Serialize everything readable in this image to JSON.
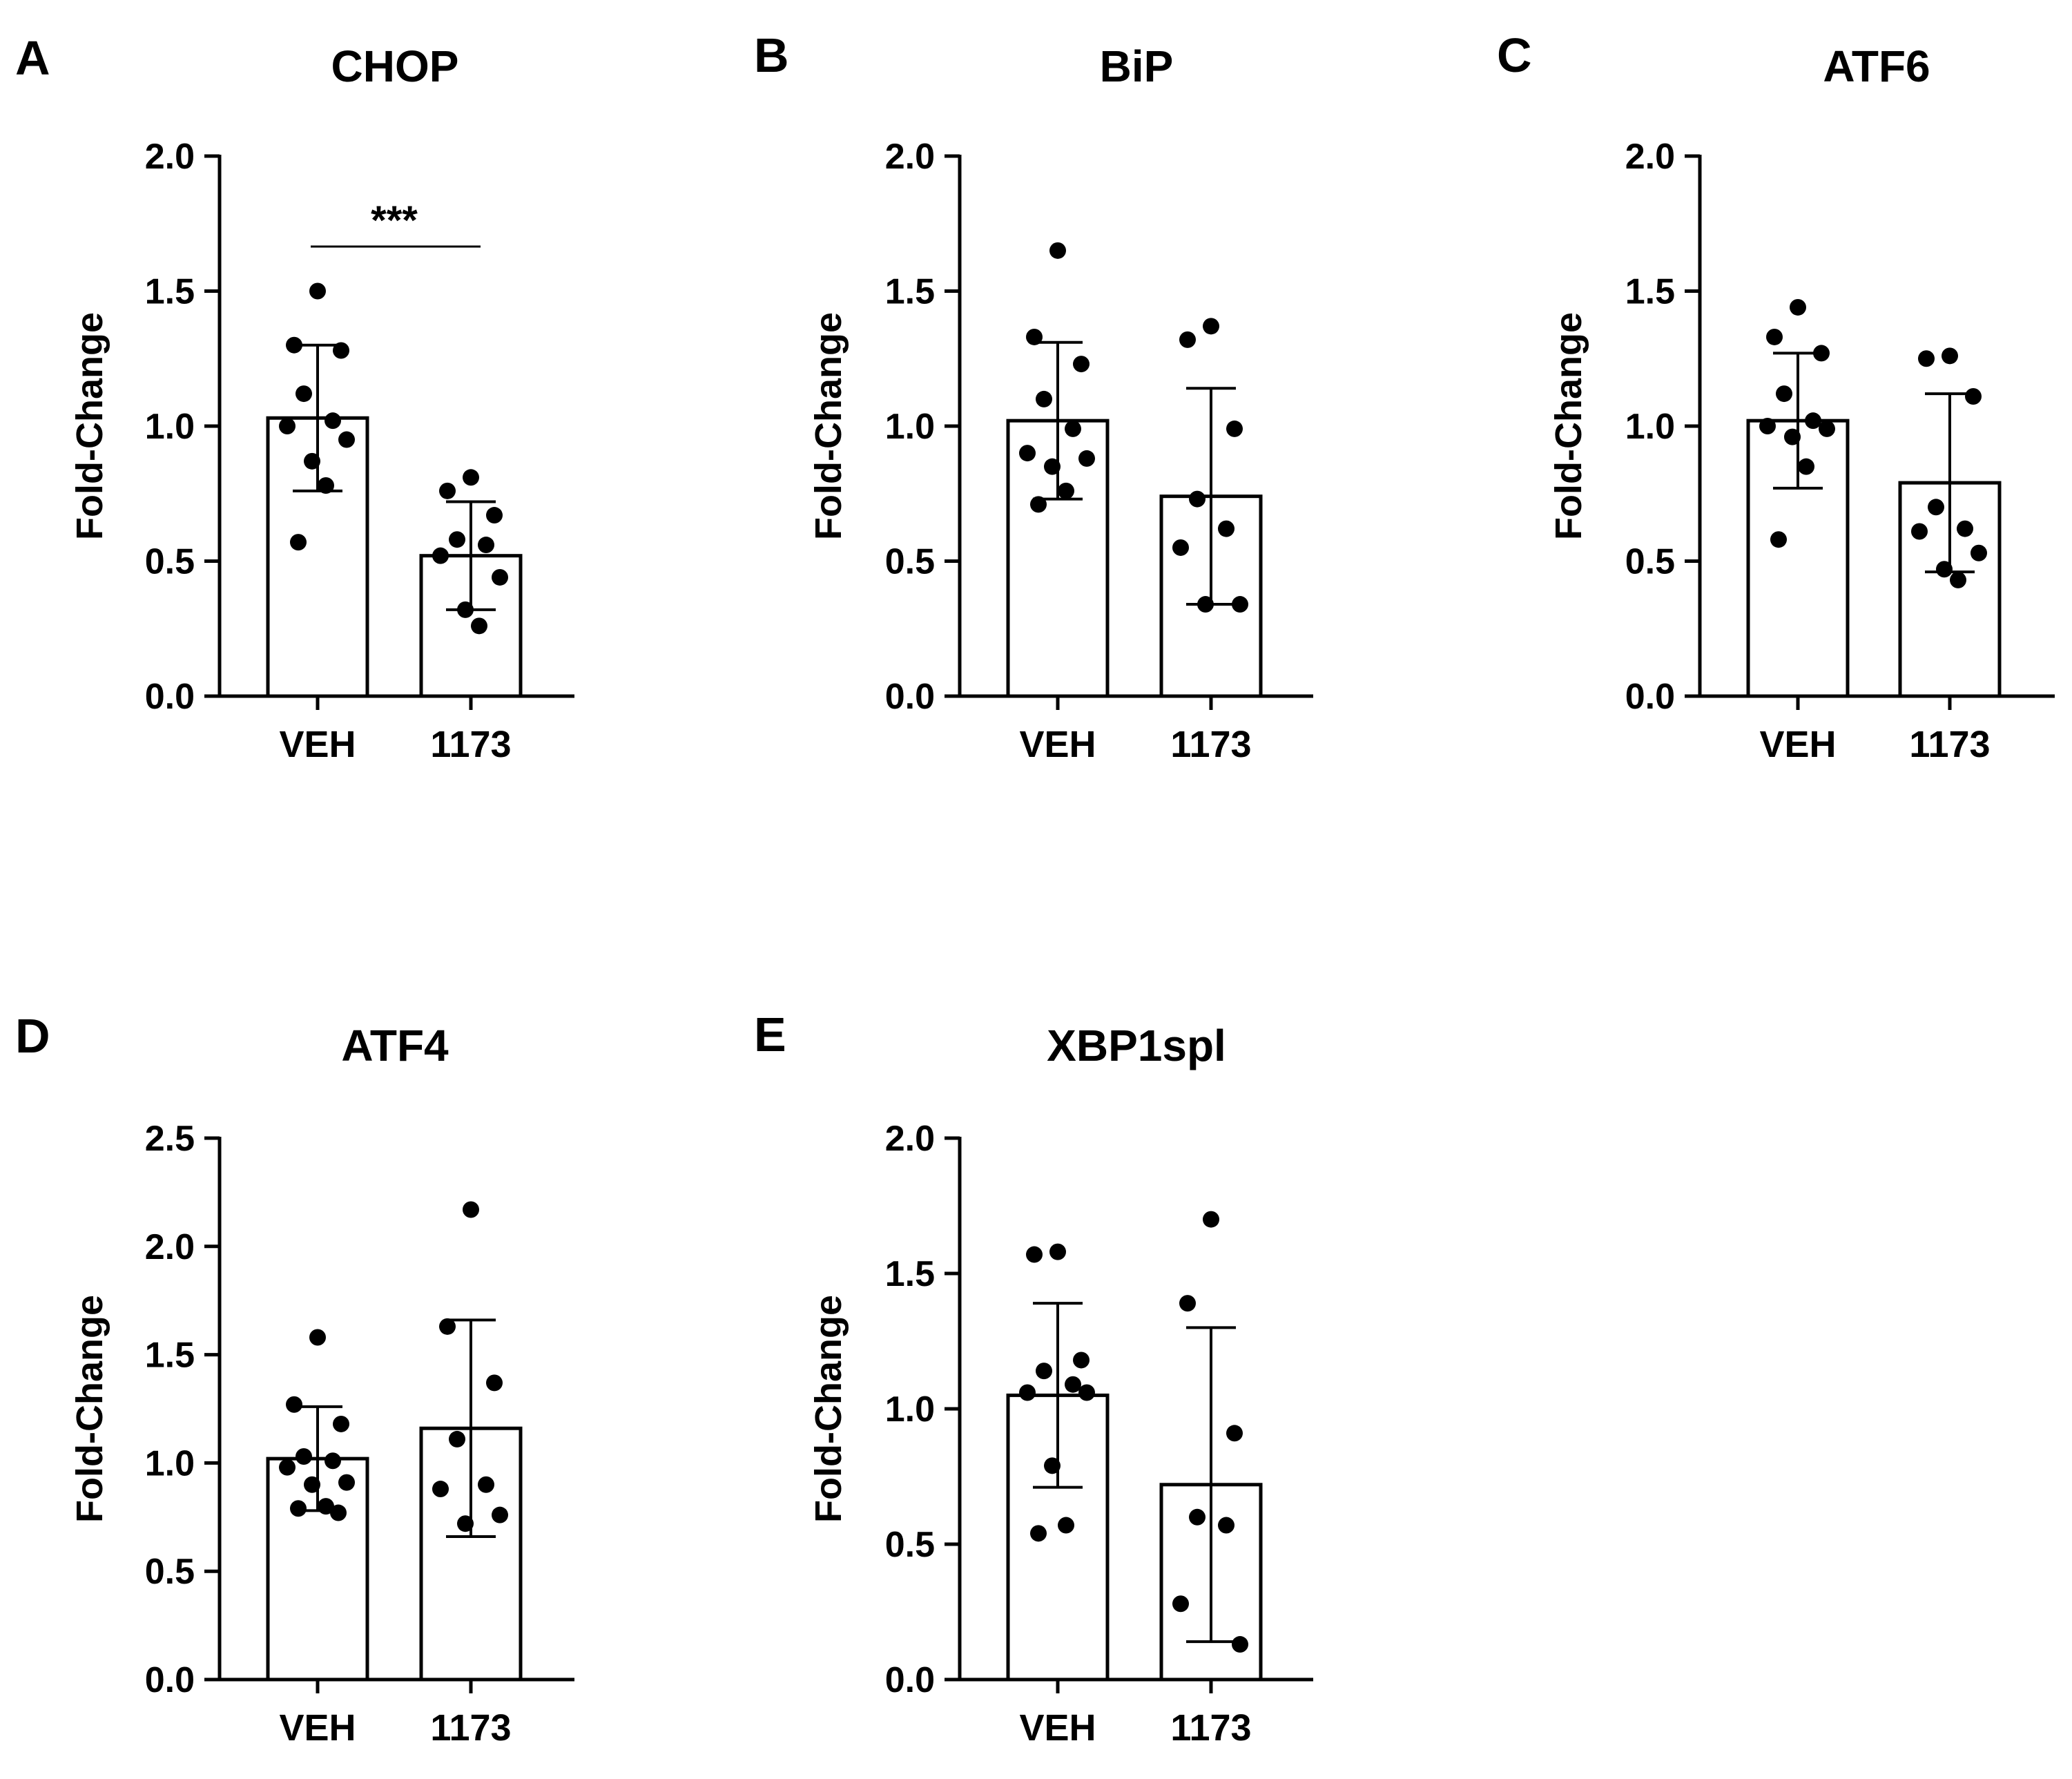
{
  "chart_data": [
    {
      "type": "bar",
      "panel": "A",
      "title": "CHOP",
      "ylabel": "Fold-Change",
      "xlabel": "",
      "categories": [
        "VEH",
        "1173"
      ],
      "ylim": [
        0,
        2.0
      ],
      "yticks": [
        0.0,
        0.5,
        1.0,
        1.5,
        2.0
      ],
      "ytick_labels": [
        "0.0",
        "0.5",
        "1.0",
        "1.5",
        "2.0"
      ],
      "bars": [
        {
          "category": "VEH",
          "mean": 1.03,
          "sd": 0.27,
          "points": [
            1.5,
            1.3,
            1.28,
            1.12,
            1.02,
            1.0,
            0.95,
            0.87,
            0.78,
            0.57
          ]
        },
        {
          "category": "1173",
          "mean": 0.52,
          "sd": 0.2,
          "points": [
            0.81,
            0.76,
            0.67,
            0.58,
            0.56,
            0.52,
            0.44,
            0.32,
            0.26
          ]
        }
      ],
      "significance": "***"
    },
    {
      "type": "bar",
      "panel": "B",
      "title": "BiP",
      "ylabel": "Fold-Change",
      "xlabel": "",
      "categories": [
        "VEH",
        "1173"
      ],
      "ylim": [
        0,
        2.0
      ],
      "yticks": [
        0.0,
        0.5,
        1.0,
        1.5,
        2.0
      ],
      "ytick_labels": [
        "0.0",
        "0.5",
        "1.0",
        "1.5",
        "2.0"
      ],
      "bars": [
        {
          "category": "VEH",
          "mean": 1.02,
          "sd": 0.29,
          "points": [
            1.65,
            1.33,
            1.23,
            1.1,
            0.99,
            0.9,
            0.88,
            0.85,
            0.76,
            0.71
          ]
        },
        {
          "category": "1173",
          "mean": 0.74,
          "sd": 0.4,
          "points": [
            1.37,
            1.32,
            0.99,
            0.73,
            0.62,
            0.55,
            0.34,
            0.34
          ]
        }
      ]
    },
    {
      "type": "bar",
      "panel": "C",
      "title": "ATF6",
      "ylabel": "Fold-Change",
      "xlabel": "",
      "categories": [
        "VEH",
        "1173"
      ],
      "ylim": [
        0,
        2.0
      ],
      "yticks": [
        0.0,
        0.5,
        1.0,
        1.5,
        2.0
      ],
      "ytick_labels": [
        "0.0",
        "0.5",
        "1.0",
        "1.5",
        "2.0"
      ],
      "bars": [
        {
          "category": "VEH",
          "mean": 1.02,
          "sd": 0.25,
          "points": [
            1.44,
            1.33,
            1.27,
            1.12,
            1.02,
            1.0,
            0.99,
            0.96,
            0.85,
            0.58
          ]
        },
        {
          "category": "1173",
          "mean": 0.79,
          "sd": 0.33,
          "points": [
            1.26,
            1.25,
            1.11,
            0.7,
            0.62,
            0.61,
            0.53,
            0.47,
            0.43
          ]
        }
      ]
    },
    {
      "type": "bar",
      "panel": "D",
      "title": "ATF4",
      "ylabel": "Fold-Change",
      "xlabel": "",
      "categories": [
        "VEH",
        "1173"
      ],
      "ylim": [
        0,
        2.5
      ],
      "yticks": [
        0.0,
        0.5,
        1.0,
        1.5,
        2.0,
        2.5
      ],
      "ytick_labels": [
        "0.0",
        "0.5",
        "1.0",
        "1.5",
        "2.0",
        "2.5"
      ],
      "bars": [
        {
          "category": "VEH",
          "mean": 1.02,
          "sd": 0.24,
          "points": [
            1.58,
            1.27,
            1.18,
            1.03,
            1.01,
            0.98,
            0.91,
            0.9,
            0.8,
            0.79,
            0.77
          ]
        },
        {
          "category": "1173",
          "mean": 1.16,
          "sd": 0.5,
          "points": [
            2.17,
            1.63,
            1.37,
            1.11,
            0.9,
            0.88,
            0.76,
            0.72
          ]
        }
      ]
    },
    {
      "type": "bar",
      "panel": "E",
      "title": "XBP1spl",
      "ylabel": "Fold-Change",
      "xlabel": "",
      "categories": [
        "VEH",
        "1173"
      ],
      "ylim": [
        0,
        2.0
      ],
      "yticks": [
        0.0,
        0.5,
        1.0,
        1.5,
        2.0
      ],
      "ytick_labels": [
        "0.0",
        "0.5",
        "1.0",
        "1.5",
        "2.0"
      ],
      "bars": [
        {
          "category": "VEH",
          "mean": 1.05,
          "sd": 0.34,
          "points": [
            1.58,
            1.57,
            1.18,
            1.14,
            1.09,
            1.06,
            1.06,
            0.79,
            0.57,
            0.54
          ]
        },
        {
          "category": "1173",
          "mean": 0.72,
          "sd": 0.58,
          "points": [
            1.7,
            1.39,
            0.91,
            0.6,
            0.57,
            0.28,
            0.13
          ]
        }
      ]
    }
  ]
}
